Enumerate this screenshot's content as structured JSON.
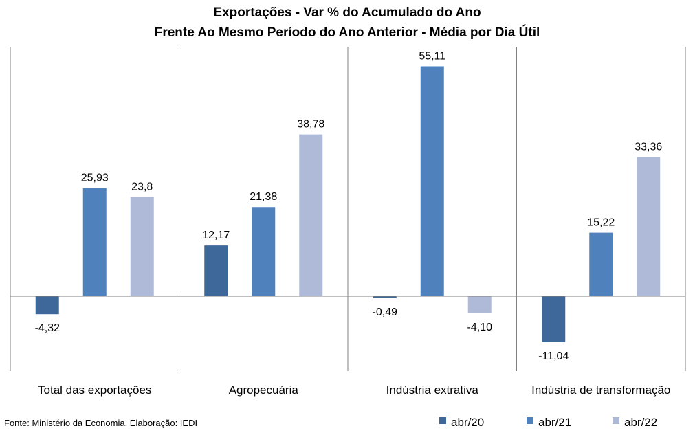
{
  "chart_data": {
    "type": "bar",
    "title": "Exportações - Var % do Acumulado do Ano",
    "subtitle": "Frente Ao Mesmo Período do Ano Anterior - Média por Dia Útil",
    "categories": [
      "Total das exportações",
      "Agropecuária",
      "Indústria extrativa",
      "Indústria de transformação"
    ],
    "series": [
      {
        "name": "abr/20",
        "color": "#3e689a",
        "values": [
          -4.32,
          12.17,
          -0.49,
          -11.04
        ],
        "labels": [
          "-4,32",
          "12,17",
          "-0,49",
          "-11,04"
        ]
      },
      {
        "name": "abr/21",
        "color": "#4f81bd",
        "values": [
          25.93,
          21.38,
          55.11,
          15.22
        ],
        "labels": [
          "25,93",
          "21,38",
          "55,11",
          "15,22"
        ]
      },
      {
        "name": "abr/22",
        "color": "#aebad8",
        "values": [
          23.8,
          38.78,
          -4.1,
          33.36
        ],
        "labels": [
          "23,8",
          "38,78",
          "-4,10",
          "33,36"
        ]
      }
    ],
    "ylim": [
      -17,
      62
    ],
    "grid": false,
    "legend": "bottom-right",
    "source": "Fonte: Ministério da Economia. Elaboração: IEDI"
  }
}
